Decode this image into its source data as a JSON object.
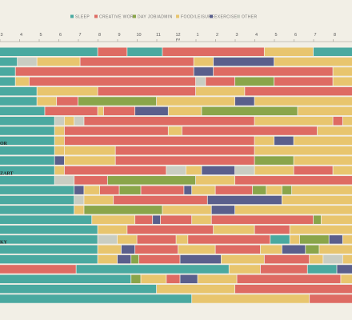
{
  "chart_data": {
    "type": "timeline",
    "title": "",
    "colors": {
      "sleep": "#4aa9a0",
      "creative": "#de6b63",
      "dayjob": "#8aa54a",
      "food": "#e8c56e",
      "exercise": "#5a5f8c",
      "other": "#c9cdc2"
    },
    "legend": [
      {
        "key": "sleep",
        "label": "SLEEP"
      },
      {
        "key": "creative",
        "label": "CREATIVE WORK"
      },
      {
        "key": "dayjob",
        "label": "DAY JOB/ADMIN"
      },
      {
        "key": "food",
        "label": "FOOD/LEISURE"
      },
      {
        "key": "exercise",
        "label": "EXERCISE"
      },
      {
        "key": "other",
        "label": "OTHER"
      }
    ],
    "ticks": [
      {
        "h": 3,
        "label": "3"
      },
      {
        "h": 4,
        "label": "4"
      },
      {
        "h": 5,
        "label": "5"
      },
      {
        "h": 6,
        "label": "6"
      },
      {
        "h": 7,
        "label": "7"
      },
      {
        "h": 8,
        "label": "8"
      },
      {
        "h": 9,
        "label": "9"
      },
      {
        "h": 10,
        "label": "10"
      },
      {
        "h": 11,
        "label": "11"
      },
      {
        "h": 12,
        "label": "12",
        "sub": "PM"
      },
      {
        "h": 13,
        "label": "1"
      },
      {
        "h": 14,
        "label": "2"
      },
      {
        "h": 15,
        "label": "3"
      },
      {
        "h": 16,
        "label": "4"
      },
      {
        "h": 17,
        "label": "5"
      },
      {
        "h": 18,
        "label": "6"
      },
      {
        "h": 19,
        "label": "7"
      },
      {
        "h": 20,
        "label": "8"
      }
    ],
    "x_range": [
      3,
      21
    ],
    "row_labels": [
      {
        "row": 10,
        "text": "OR"
      },
      {
        "row": 13,
        "text": "ZART"
      },
      {
        "row": 20,
        "text": "KY"
      }
    ],
    "rows": [
      [
        [
          "sleep",
          3,
          8
        ],
        [
          "creative",
          8,
          9.5
        ],
        [
          "sleep",
          9.5,
          11.3
        ],
        [
          "creative",
          11.3,
          16.5
        ],
        [
          "food",
          16.5,
          19
        ],
        [
          "sleep",
          19,
          21
        ]
      ],
      [
        [
          "sleep",
          3,
          3.9
        ],
        [
          "other",
          3.9,
          4.9
        ],
        [
          "food",
          4.9,
          7.1
        ],
        [
          "creative",
          7.1,
          12.9
        ],
        [
          "food",
          12.9,
          13.9
        ],
        [
          "exercise",
          13.9,
          17
        ],
        [
          "food",
          17,
          21
        ]
      ],
      [
        [
          "sleep",
          3,
          3.8
        ],
        [
          "creative",
          3.8,
          12.9
        ],
        [
          "exercise",
          12.9,
          13.9
        ],
        [
          "creative",
          13.9,
          20
        ],
        [
          "food",
          20,
          21
        ]
      ],
      [
        [
          "sleep",
          3,
          3.8
        ],
        [
          "food",
          3.8,
          4.5
        ],
        [
          "creative",
          4.5,
          13
        ],
        [
          "other",
          13,
          13.5
        ],
        [
          "creative",
          13.5,
          15
        ],
        [
          "dayjob",
          15,
          17
        ],
        [
          "creative",
          17,
          20
        ],
        [
          "food",
          20,
          21
        ]
      ],
      [
        [
          "sleep",
          3,
          4.9
        ],
        [
          "food",
          4.9,
          8
        ],
        [
          "creative",
          8,
          13
        ],
        [
          "food",
          13,
          15.5
        ],
        [
          "creative",
          15.5,
          21
        ]
      ],
      [
        [
          "sleep",
          3,
          4.9
        ],
        [
          "food",
          4.9,
          5.9
        ],
        [
          "creative",
          5.9,
          7
        ],
        [
          "dayjob",
          7,
          11
        ],
        [
          "food",
          11,
          15
        ],
        [
          "exercise",
          15,
          16
        ],
        [
          "food",
          16,
          21
        ]
      ],
      [
        [
          "sleep",
          3,
          5.3
        ],
        [
          "creative",
          5.3,
          8
        ],
        [
          "food",
          8,
          8.3
        ],
        [
          "creative",
          8.3,
          9.9
        ],
        [
          "exercise",
          9.9,
          11.6
        ],
        [
          "food",
          11.6,
          13.3
        ],
        [
          "dayjob",
          13.3,
          18.2
        ],
        [
          "food",
          18.2,
          21
        ]
      ],
      [
        [
          "sleep",
          3,
          5.8
        ],
        [
          "other",
          5.8,
          6.3
        ],
        [
          "food",
          6.3,
          6.8
        ],
        [
          "other",
          6.8,
          7.3
        ],
        [
          "creative",
          7.3,
          16
        ],
        [
          "food",
          16,
          20
        ],
        [
          "creative",
          20,
          20.5
        ],
        [
          "food",
          20.5,
          21
        ]
      ],
      [
        [
          "sleep",
          3,
          5.8
        ],
        [
          "food",
          5.8,
          6.3
        ],
        [
          "creative",
          6.3,
          11.6
        ],
        [
          "food",
          11.6,
          12.3
        ],
        [
          "creative",
          12.3,
          19.2
        ],
        [
          "food",
          19.2,
          21
        ]
      ],
      [
        [
          "sleep",
          3,
          5.8
        ],
        [
          "food",
          5.8,
          6.3
        ],
        [
          "creative",
          6.3,
          16
        ],
        [
          "food",
          16,
          17
        ],
        [
          "exercise",
          17,
          18
        ],
        [
          "food",
          18,
          21
        ]
      ],
      [
        [
          "sleep",
          3,
          5.8
        ],
        [
          "food",
          5.8,
          6.3
        ],
        [
          "food",
          6.3,
          8.9
        ],
        [
          "creative",
          8.9,
          16
        ],
        [
          "food",
          16,
          21
        ]
      ],
      [
        [
          "sleep",
          3,
          5.8
        ],
        [
          "exercise",
          5.8,
          6.3
        ],
        [
          "food",
          6.3,
          8.9
        ],
        [
          "creative",
          8.9,
          16
        ],
        [
          "dayjob",
          16,
          18
        ],
        [
          "food",
          18,
          21
        ]
      ],
      [
        [
          "sleep",
          3,
          5.8
        ],
        [
          "food",
          5.8,
          6.3
        ],
        [
          "creative",
          6.3,
          11.5
        ],
        [
          "other",
          11.5,
          12.5
        ],
        [
          "food",
          12.5,
          13.3
        ],
        [
          "exercise",
          13.3,
          15
        ],
        [
          "other",
          15,
          16
        ],
        [
          "food",
          16,
          18
        ],
        [
          "creative",
          18,
          20
        ],
        [
          "food",
          20,
          21
        ]
      ],
      [
        [
          "sleep",
          3,
          5.8
        ],
        [
          "other",
          5.8,
          6.8
        ],
        [
          "creative",
          6.8,
          8.5
        ],
        [
          "dayjob",
          8.5,
          13
        ],
        [
          "food",
          13,
          15
        ],
        [
          "creative",
          15,
          21
        ]
      ],
      [
        [
          "sleep",
          3,
          6.8
        ],
        [
          "exercise",
          6.8,
          7.3
        ],
        [
          "food",
          7.3,
          8.1
        ],
        [
          "creative",
          8.1,
          9.1
        ],
        [
          "dayjob",
          9.1,
          10.2
        ],
        [
          "creative",
          10.2,
          12.4
        ],
        [
          "exercise",
          12.4,
          12.8
        ],
        [
          "food",
          12.8,
          14
        ],
        [
          "creative",
          14,
          15.9
        ],
        [
          "dayjob",
          15.9,
          16.6
        ],
        [
          "food",
          16.6,
          17.4
        ],
        [
          "dayjob",
          17.4,
          17.9
        ],
        [
          "food",
          17.9,
          21
        ]
      ],
      [
        [
          "sleep",
          3,
          6.8
        ],
        [
          "other",
          6.8,
          7.3
        ],
        [
          "food",
          7.3,
          8.8
        ],
        [
          "creative",
          8.8,
          13.6
        ],
        [
          "exercise",
          13.6,
          17.4
        ],
        [
          "food",
          17.4,
          21
        ]
      ],
      [
        [
          "sleep",
          3,
          6.8
        ],
        [
          "food",
          6.8,
          7.3
        ],
        [
          "dayjob",
          7.3,
          11.3
        ],
        [
          "food",
          11.3,
          13.8
        ],
        [
          "exercise",
          13.8,
          15
        ],
        [
          "food",
          15,
          21
        ]
      ],
      [
        [
          "sleep",
          3,
          7.7
        ],
        [
          "food",
          7.7,
          9.9
        ],
        [
          "creative",
          9.9,
          10.8
        ],
        [
          "exercise",
          10.8,
          11.2
        ],
        [
          "creative",
          11.2,
          12.8
        ],
        [
          "food",
          12.8,
          13.8
        ],
        [
          "creative",
          13.8,
          19
        ],
        [
          "dayjob",
          19,
          19.4
        ],
        [
          "food",
          19.4,
          21
        ]
      ],
      [
        [
          "sleep",
          3,
          8
        ],
        [
          "food",
          8,
          9.5
        ],
        [
          "creative",
          9.5,
          13.9
        ],
        [
          "food",
          13.9,
          16
        ],
        [
          "creative",
          16,
          17.8
        ],
        [
          "food",
          17.8,
          21
        ]
      ],
      [
        [
          "sleep",
          3,
          8
        ],
        [
          "other",
          8,
          9
        ],
        [
          "food",
          9,
          10
        ],
        [
          "creative",
          10,
          12
        ],
        [
          "food",
          12,
          12.6
        ],
        [
          "creative",
          12.6,
          16.8
        ],
        [
          "sleep",
          16.8,
          17.8
        ],
        [
          "food",
          17.8,
          18.3
        ],
        [
          "dayjob",
          18.3,
          19.8
        ],
        [
          "exercise",
          19.8,
          20.5
        ],
        [
          "food",
          20.5,
          21
        ]
      ],
      [
        [
          "sleep",
          3,
          8
        ],
        [
          "food",
          8,
          9.2
        ],
        [
          "exercise",
          9.2,
          9.9
        ],
        [
          "creative",
          9.9,
          12.1
        ],
        [
          "food",
          12.1,
          14
        ],
        [
          "creative",
          14,
          16.3
        ],
        [
          "food",
          16.3,
          17.4
        ],
        [
          "exercise",
          17.4,
          18.6
        ],
        [
          "dayjob",
          18.6,
          19.3
        ],
        [
          "food",
          19.3,
          21
        ]
      ],
      [
        [
          "sleep",
          3,
          8
        ],
        [
          "food",
          8,
          9
        ],
        [
          "exercise",
          9,
          9.7
        ],
        [
          "dayjob",
          9.7,
          10.1
        ],
        [
          "creative",
          10.1,
          12.2
        ],
        [
          "exercise",
          12.2,
          14.3
        ],
        [
          "food",
          14.3,
          16.5
        ],
        [
          "creative",
          16.5,
          18.8
        ],
        [
          "food",
          18.8,
          19.5
        ],
        [
          "other",
          19.5,
          20.5
        ],
        [
          "food",
          20.5,
          21
        ]
      ],
      [
        [
          "creative",
          3,
          6.9
        ],
        [
          "sleep",
          6.9,
          14.7
        ],
        [
          "food",
          14.7,
          16.3
        ],
        [
          "creative",
          16.3,
          18.7
        ],
        [
          "sleep",
          18.7,
          20.2
        ],
        [
          "exercise",
          20.2,
          21
        ]
      ],
      [
        [
          "sleep",
          3,
          9.7
        ],
        [
          "dayjob",
          9.7,
          10.2
        ],
        [
          "food",
          10.2,
          11.5
        ],
        [
          "creative",
          11.5,
          12.2
        ],
        [
          "exercise",
          12.2,
          13.1
        ],
        [
          "food",
          13.1,
          15.1
        ],
        [
          "creative",
          15.1,
          20.4
        ],
        [
          "food",
          20.4,
          21
        ]
      ],
      [
        [
          "sleep",
          3,
          11
        ],
        [
          "food",
          11,
          15
        ],
        [
          "creative",
          15,
          21
        ]
      ],
      [
        [
          "sleep",
          3,
          12.8
        ],
        [
          "food",
          12.8,
          18.8
        ],
        [
          "creative",
          18.8,
          21
        ]
      ]
    ]
  }
}
